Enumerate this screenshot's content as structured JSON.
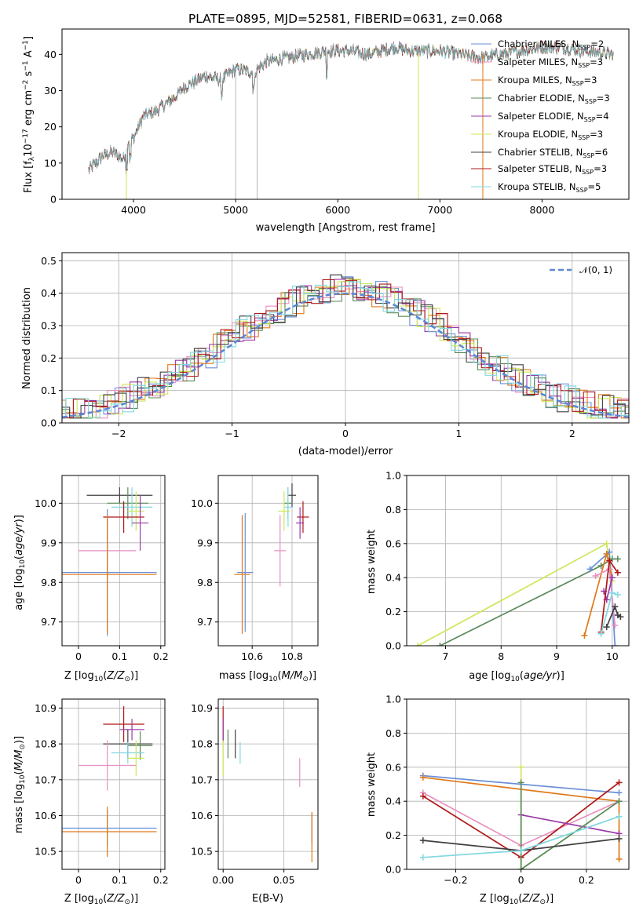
{
  "chart_data": [
    {
      "type": "line",
      "name": "spectrum",
      "title": "PLATE=0895, MJD=52581, FIBERID=0631, z=0.068",
      "xlabel": "wavelength [Angstrom, rest frame]",
      "ylabel": "Flux [f_λ10^-17 erg cm^-2 s^-1 A^-1]",
      "xlim": [
        3300,
        8850
      ],
      "ylim": [
        0,
        47
      ],
      "xticks": [
        4000,
        5000,
        6000,
        7000,
        8000
      ],
      "yticks": [
        0,
        10,
        20,
        30,
        40
      ],
      "grid": false,
      "legend_position": "top-right",
      "series": [
        {
          "name": "Chabrier MILES, N_SSP=2",
          "color": "#6a8fd6"
        },
        {
          "name": "Salpeter MILES, N_SSP=3",
          "color": "#e88fc0"
        },
        {
          "name": "Kroupa MILES, N_SSP=3",
          "color": "#e0781a"
        },
        {
          "name": "Chabrier ELODIE, N_SSP=3",
          "color": "#5a8a5a"
        },
        {
          "name": "Salpeter ELODIE, N_SSP=4",
          "color": "#9a3aa8"
        },
        {
          "name": "Kroupa ELODIE, N_SSP=3",
          "color": "#cce85a"
        },
        {
          "name": "Chabrier STELIB, N_SSP=6",
          "color": "#404040"
        },
        {
          "name": "Salpeter STELIB, N_SSP=3",
          "color": "#b01818"
        },
        {
          "name": "Kroupa STELIB, N_SSP=5",
          "color": "#80d8e0"
        }
      ],
      "approx_continuum": {
        "x": [
          3560,
          3700,
          3800,
          3900,
          3950,
          4000,
          4100,
          4200,
          4300,
          4400,
          4500,
          4700,
          4860,
          5000,
          5175,
          5300,
          5500,
          5700,
          5900,
          6100,
          6300,
          6563,
          6700,
          7000,
          7200,
          7400,
          7600,
          7800,
          8000,
          8200,
          8400,
          8700
        ],
        "y": [
          8,
          12,
          13,
          11,
          16,
          17,
          23,
          24,
          26,
          28,
          31,
          34,
          33,
          36,
          35,
          38,
          39,
          40,
          41,
          41,
          40,
          42,
          41,
          41,
          40,
          39,
          40,
          41,
          42,
          42,
          41,
          40
        ]
      }
    },
    {
      "type": "line",
      "name": "residual-distribution",
      "xlabel": "(data-model)/error",
      "ylabel": "Normed distribution",
      "xlim": [
        -2.5,
        2.5
      ],
      "ylim": [
        0,
        0.525
      ],
      "xticks": [
        -2,
        -1,
        0,
        1,
        2
      ],
      "yticks": [
        0.0,
        0.1,
        0.2,
        0.3,
        0.4,
        0.5
      ],
      "grid": true,
      "legend_position": "top-right",
      "legend": "𝒩(0, 1)",
      "normal_curve_color": "#5b87d6"
    },
    {
      "type": "scatter",
      "name": "age-vs-metallicity",
      "xlabel": "Z [log10(Z/Z⊙)]",
      "ylabel": "age  [log10(age/yr)]",
      "xlim": [
        -0.04,
        0.21
      ],
      "ylim": [
        9.64,
        10.07
      ],
      "xticks": [
        0.0,
        0.1,
        0.2
      ],
      "yticks": [
        9.7,
        9.8,
        9.9,
        10.0
      ],
      "grid": true,
      "points": [
        {
          "x": 0.1,
          "y": 10.02,
          "xerr": 0.08,
          "yerr": 0.02,
          "color": "#404040"
        },
        {
          "x": 0.12,
          "y": 10.0,
          "xerr": 0.05,
          "yerr": 0.04,
          "color": "#5a8a5a"
        },
        {
          "x": 0.13,
          "y": 9.99,
          "xerr": 0.05,
          "yerr": 0.05,
          "color": "#80d8e0"
        },
        {
          "x": 0.14,
          "y": 9.98,
          "xerr": 0.02,
          "yerr": 0.05,
          "color": "#cce85a"
        },
        {
          "x": 0.11,
          "y": 9.965,
          "xerr": 0.05,
          "yerr": 0.04,
          "color": "#b01818"
        },
        {
          "x": 0.15,
          "y": 9.95,
          "xerr": 0.02,
          "yerr": 0.07,
          "color": "#9a3aa8"
        },
        {
          "x": 0.07,
          "y": 9.88,
          "xerr": 0.07,
          "yerr": 0.09,
          "color": "#e88fc0"
        },
        {
          "x": 0.07,
          "y": 9.825,
          "xerr": 0.12,
          "yerr": 0.16,
          "color": "#6a8fd6"
        },
        {
          "x": 0.07,
          "y": 9.82,
          "xerr": 0.12,
          "yerr": 0.15,
          "color": "#e0781a"
        }
      ]
    },
    {
      "type": "scatter",
      "name": "age-vs-mass",
      "xlabel": "mass [log10(M/M⊙)]",
      "ylabel": "",
      "xlim": [
        10.43,
        10.93
      ],
      "ylim": [
        9.64,
        10.07
      ],
      "xticks": [
        10.6,
        10.8
      ],
      "yticks": [
        9.7,
        9.8,
        9.9,
        10.0
      ],
      "grid": true,
      "points": [
        {
          "x": 10.8,
          "y": 10.02,
          "xerr": 0.02,
          "yerr": 0.03,
          "color": "#404040"
        },
        {
          "x": 10.78,
          "y": 10.0,
          "xerr": 0.02,
          "yerr": 0.04,
          "color": "#5a8a5a"
        },
        {
          "x": 10.78,
          "y": 9.99,
          "xerr": 0.02,
          "yerr": 0.05,
          "color": "#80d8e0"
        },
        {
          "x": 10.76,
          "y": 9.98,
          "xerr": 0.03,
          "yerr": 0.05,
          "color": "#cce85a"
        },
        {
          "x": 10.855,
          "y": 9.965,
          "xerr": 0.03,
          "yerr": 0.04,
          "color": "#b01818"
        },
        {
          "x": 10.84,
          "y": 9.95,
          "xerr": 0.02,
          "yerr": 0.04,
          "color": "#9a3aa8"
        },
        {
          "x": 10.74,
          "y": 9.88,
          "xerr": 0.03,
          "yerr": 0.09,
          "color": "#e88fc0"
        },
        {
          "x": 10.565,
          "y": 9.825,
          "xerr": 0.04,
          "yerr": 0.15,
          "color": "#6a8fd6"
        },
        {
          "x": 10.55,
          "y": 9.82,
          "xerr": 0.04,
          "yerr": 0.15,
          "color": "#e0781a"
        }
      ]
    },
    {
      "type": "line",
      "name": "mass-weight-vs-age",
      "xlabel": "age  [log10(age/yr)]",
      "ylabel": "mass weight",
      "xlim": [
        6.3,
        10.3
      ],
      "ylim": [
        0,
        1.0
      ],
      "xticks": [
        7,
        8,
        9,
        10
      ],
      "yticks": [
        0.0,
        0.2,
        0.4,
        0.6,
        0.8,
        1.0
      ],
      "grid": true,
      "series": [
        {
          "color": "#cce85a",
          "x": [
            6.5,
            9.9,
            10.0
          ],
          "y": [
            0.0,
            0.6,
            0.38
          ]
        },
        {
          "color": "#5a8a5a",
          "x": [
            6.9,
            9.8,
            10.0,
            10.1
          ],
          "y": [
            0.0,
            0.47,
            0.51,
            0.51
          ]
        },
        {
          "color": "#6a8fd6",
          "x": [
            9.6,
            9.95,
            10.05
          ],
          "y": [
            0.45,
            0.55,
            0.0
          ]
        },
        {
          "color": "#e0781a",
          "x": [
            9.5,
            9.9,
            10.0
          ],
          "y": [
            0.06,
            0.54,
            0.4
          ]
        },
        {
          "color": "#e88fc0",
          "x": [
            9.7,
            9.95,
            10.05
          ],
          "y": [
            0.41,
            0.45,
            0.12
          ]
        },
        {
          "color": "#9a3aa8",
          "x": [
            9.85,
            9.9,
            10.0
          ],
          "y": [
            0.32,
            0.27,
            0.4
          ]
        },
        {
          "color": "#b01818",
          "x": [
            9.8,
            9.95,
            10.1
          ],
          "y": [
            0.08,
            0.5,
            0.43
          ]
        },
        {
          "color": "#80d8e0",
          "x": [
            9.8,
            10.0,
            10.1
          ],
          "y": [
            0.07,
            0.31,
            0.3
          ]
        },
        {
          "color": "#404040",
          "x": [
            9.9,
            10.05,
            10.1,
            10.15
          ],
          "y": [
            0.11,
            0.23,
            0.18,
            0.17
          ]
        }
      ]
    },
    {
      "type": "scatter",
      "name": "mass-vs-metallicity",
      "xlabel": "Z [log10(Z/Z⊙)]",
      "ylabel": "mass [log10(M/M⊙)]",
      "xlim": [
        -0.04,
        0.21
      ],
      "ylim": [
        10.45,
        10.925
      ],
      "xticks": [
        0.0,
        0.1,
        0.2
      ],
      "yticks": [
        10.5,
        10.6,
        10.7,
        10.8,
        10.9
      ],
      "grid": true,
      "points": [
        {
          "x": 0.11,
          "y": 10.855,
          "xerr": 0.05,
          "yerr": 0.05,
          "color": "#b01818"
        },
        {
          "x": 0.13,
          "y": 10.84,
          "xerr": 0.03,
          "yerr": 0.03,
          "color": "#9a3aa8"
        },
        {
          "x": 0.12,
          "y": 10.8,
          "xerr": 0.06,
          "yerr": 0.04,
          "color": "#404040"
        },
        {
          "x": 0.15,
          "y": 10.795,
          "xerr": 0.03,
          "yerr": 0.04,
          "color": "#5a8a5a"
        },
        {
          "x": 0.12,
          "y": 10.775,
          "xerr": 0.04,
          "yerr": 0.03,
          "color": "#80d8e0"
        },
        {
          "x": 0.14,
          "y": 10.76,
          "xerr": 0.02,
          "yerr": 0.05,
          "color": "#cce85a"
        },
        {
          "x": 0.07,
          "y": 10.74,
          "xerr": 0.07,
          "yerr": 0.07,
          "color": "#e88fc0"
        },
        {
          "x": 0.07,
          "y": 10.565,
          "xerr": 0.12,
          "yerr": 0.05,
          "color": "#6a8fd6"
        },
        {
          "x": 0.07,
          "y": 10.555,
          "xerr": 0.12,
          "yerr": 0.07,
          "color": "#e0781a"
        }
      ]
    },
    {
      "type": "scatter",
      "name": "mass-vs-extinction",
      "xlabel": "E(B-V)",
      "ylabel": "",
      "xlim": [
        -0.004,
        0.078
      ],
      "ylim": [
        10.45,
        10.925
      ],
      "xticks": [
        0.0,
        0.05
      ],
      "tick_labels": [
        "0.00",
        "0.05"
      ],
      "yticks": [
        10.5,
        10.6,
        10.7,
        10.8,
        10.9
      ],
      "grid": true,
      "points": [
        {
          "x": 0.0,
          "y": 10.855,
          "xerr": 0.0,
          "yerr": 0.05,
          "color": "#b01818"
        },
        {
          "x": 0.0,
          "y": 10.84,
          "xerr": 0.0,
          "yerr": 0.03,
          "color": "#9a3aa8"
        },
        {
          "x": 0.004,
          "y": 10.8,
          "xerr": 0.0,
          "yerr": 0.04,
          "color": "#5a8a5a"
        },
        {
          "x": 0.01,
          "y": 10.8,
          "xerr": 0.0,
          "yerr": 0.04,
          "color": "#404040"
        },
        {
          "x": 0.014,
          "y": 10.775,
          "xerr": 0.0,
          "yerr": 0.03,
          "color": "#80d8e0"
        },
        {
          "x": 0.0,
          "y": 10.76,
          "xerr": 0.0,
          "yerr": 0.05,
          "color": "#cce85a"
        },
        {
          "x": 0.063,
          "y": 10.72,
          "xerr": 0.0,
          "yerr": 0.04,
          "color": "#e88fc0"
        },
        {
          "x": 0.073,
          "y": 10.565,
          "xerr": 0.0,
          "yerr": 0.04,
          "color": "#6a8fd6"
        },
        {
          "x": 0.073,
          "y": 10.54,
          "xerr": 0.0,
          "yerr": 0.07,
          "color": "#e0781a"
        }
      ]
    },
    {
      "type": "line",
      "name": "mass-weight-vs-metallicity",
      "xlabel": "Z [log10(Z/Z⊙)]",
      "ylabel": "mass weight",
      "xlim": [
        -0.35,
        0.33
      ],
      "ylim": [
        0,
        1.0
      ],
      "xticks": [
        -0.2,
        0.0,
        0.2
      ],
      "yticks": [
        0.0,
        0.2,
        0.4,
        0.6,
        0.8,
        1.0
      ],
      "grid": true,
      "series": [
        {
          "color": "#6a8fd6",
          "x": [
            -0.3,
            0.3
          ],
          "y": [
            0.55,
            0.45
          ]
        },
        {
          "color": "#e0781a",
          "x": [
            -0.3,
            0.3,
            0.3
          ],
          "y": [
            0.54,
            0.4,
            0.06
          ]
        },
        {
          "color": "#e88fc0",
          "x": [
            -0.3,
            0.0,
            0.3
          ],
          "y": [
            0.45,
            0.14,
            0.4
          ]
        },
        {
          "color": "#b01818",
          "x": [
            -0.3,
            0.0,
            0.3
          ],
          "y": [
            0.43,
            0.07,
            0.51
          ]
        },
        {
          "color": "#9a3aa8",
          "x": [
            0.0,
            0.3
          ],
          "y": [
            0.32,
            0.21
          ]
        },
        {
          "color": "#cce85a",
          "x": [
            0.0,
            0.0,
            0.3
          ],
          "y": [
            0.6,
            0.0,
            0.4
          ]
        },
        {
          "color": "#5a8a5a",
          "x": [
            0.0,
            0.0,
            0.3
          ],
          "y": [
            0.51,
            0.0,
            0.4
          ]
        },
        {
          "color": "#404040",
          "x": [
            -0.3,
            0.0,
            0.3
          ],
          "y": [
            0.17,
            0.11,
            0.18
          ]
        },
        {
          "color": "#80d8e0",
          "x": [
            -0.3,
            0.0,
            0.3
          ],
          "y": [
            0.07,
            0.11,
            0.31
          ]
        }
      ]
    }
  ]
}
